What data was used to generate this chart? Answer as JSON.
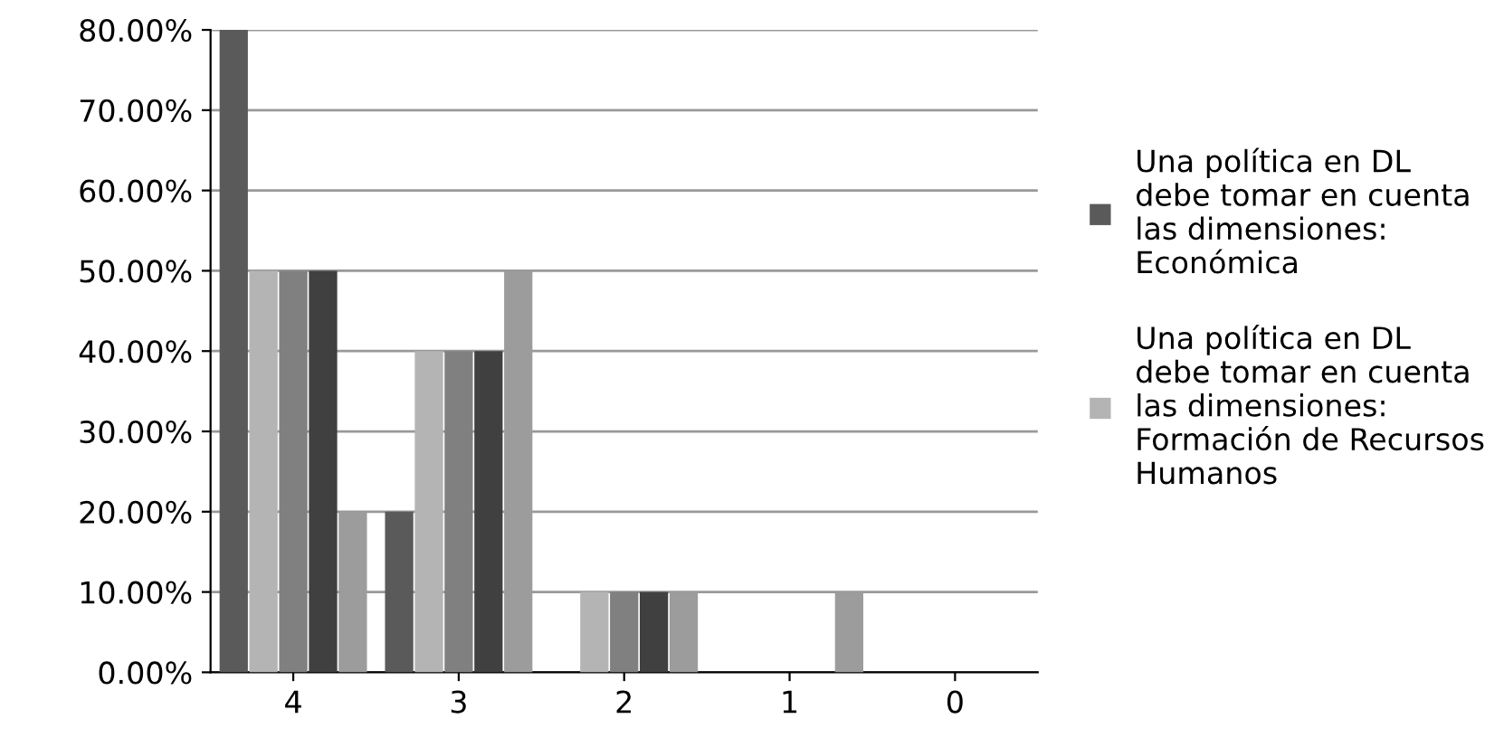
{
  "chart_data": {
    "type": "bar",
    "categories": [
      "4",
      "3",
      "2",
      "1",
      "0"
    ],
    "series": [
      {
        "name": "Una política en DL debe tomar en cuenta las dimensiones: Económica",
        "color": "#5a5a5a",
        "values": [
          80,
          20,
          null,
          null,
          null
        ]
      },
      {
        "name": "Una política en DL debe tomar en cuenta las dimensiones: Formación de Recursos Humanos",
        "color": "#b4b4b4",
        "values": [
          50,
          40,
          10,
          null,
          null
        ]
      },
      {
        "color": "#808080",
        "values": [
          50,
          40,
          10,
          null,
          null
        ]
      },
      {
        "color": "#404040",
        "values": [
          50,
          40,
          10,
          null,
          null
        ]
      },
      {
        "color": "#9c9c9c",
        "values": [
          20,
          50,
          10,
          10,
          null
        ]
      }
    ],
    "ylim": [
      0,
      80
    ],
    "yticks": [
      {
        "value": 0,
        "label": "0.00%"
      },
      {
        "value": 10,
        "label": "10.00%"
      },
      {
        "value": 20,
        "label": "20.00%"
      },
      {
        "value": 30,
        "label": "30.00%"
      },
      {
        "value": 40,
        "label": "40.00%"
      },
      {
        "value": 50,
        "label": "50.00%"
      },
      {
        "value": 60,
        "label": "60.00%"
      },
      {
        "value": 70,
        "label": "70.00%"
      },
      {
        "value": 80,
        "label": "80.00%"
      }
    ],
    "grid": "y",
    "legend": "right"
  }
}
